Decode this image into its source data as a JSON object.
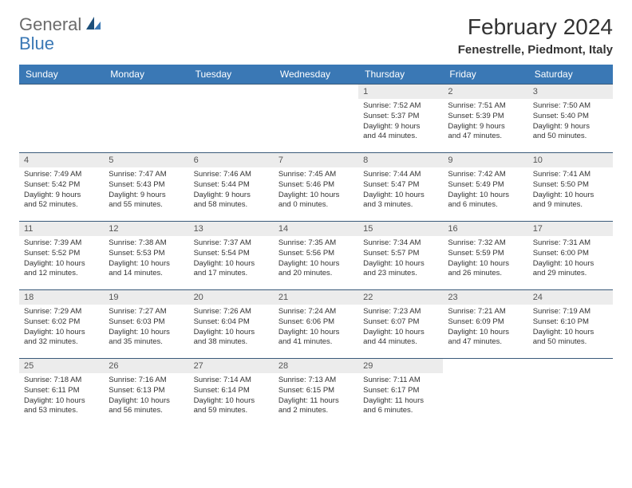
{
  "brand": {
    "first": "General",
    "second": "Blue"
  },
  "title": "February 2024",
  "location": "Fenestrelle, Piedmont, Italy",
  "colors": {
    "header_bg": "#3a78b5",
    "header_text": "#ffffff",
    "daynum_bg": "#ececec",
    "daynum_text": "#555555",
    "body_text": "#333333",
    "row_border": "#3a5a7a",
    "logo_gray": "#6b6b6b",
    "logo_blue": "#3a78b5",
    "page_bg": "#ffffff"
  },
  "typography": {
    "title_size": 28,
    "location_size": 15,
    "header_cell_size": 12,
    "daynum_size": 11,
    "info_size": 9.5
  },
  "columns": [
    "Sunday",
    "Monday",
    "Tuesday",
    "Wednesday",
    "Thursday",
    "Friday",
    "Saturday"
  ],
  "weeks": [
    [
      null,
      null,
      null,
      null,
      {
        "n": "1",
        "sr": "Sunrise: 7:52 AM",
        "ss": "Sunset: 5:37 PM",
        "d1": "Daylight: 9 hours",
        "d2": "and 44 minutes."
      },
      {
        "n": "2",
        "sr": "Sunrise: 7:51 AM",
        "ss": "Sunset: 5:39 PM",
        "d1": "Daylight: 9 hours",
        "d2": "and 47 minutes."
      },
      {
        "n": "3",
        "sr": "Sunrise: 7:50 AM",
        "ss": "Sunset: 5:40 PM",
        "d1": "Daylight: 9 hours",
        "d2": "and 50 minutes."
      }
    ],
    [
      {
        "n": "4",
        "sr": "Sunrise: 7:49 AM",
        "ss": "Sunset: 5:42 PM",
        "d1": "Daylight: 9 hours",
        "d2": "and 52 minutes."
      },
      {
        "n": "5",
        "sr": "Sunrise: 7:47 AM",
        "ss": "Sunset: 5:43 PM",
        "d1": "Daylight: 9 hours",
        "d2": "and 55 minutes."
      },
      {
        "n": "6",
        "sr": "Sunrise: 7:46 AM",
        "ss": "Sunset: 5:44 PM",
        "d1": "Daylight: 9 hours",
        "d2": "and 58 minutes."
      },
      {
        "n": "7",
        "sr": "Sunrise: 7:45 AM",
        "ss": "Sunset: 5:46 PM",
        "d1": "Daylight: 10 hours",
        "d2": "and 0 minutes."
      },
      {
        "n": "8",
        "sr": "Sunrise: 7:44 AM",
        "ss": "Sunset: 5:47 PM",
        "d1": "Daylight: 10 hours",
        "d2": "and 3 minutes."
      },
      {
        "n": "9",
        "sr": "Sunrise: 7:42 AM",
        "ss": "Sunset: 5:49 PM",
        "d1": "Daylight: 10 hours",
        "d2": "and 6 minutes."
      },
      {
        "n": "10",
        "sr": "Sunrise: 7:41 AM",
        "ss": "Sunset: 5:50 PM",
        "d1": "Daylight: 10 hours",
        "d2": "and 9 minutes."
      }
    ],
    [
      {
        "n": "11",
        "sr": "Sunrise: 7:39 AM",
        "ss": "Sunset: 5:52 PM",
        "d1": "Daylight: 10 hours",
        "d2": "and 12 minutes."
      },
      {
        "n": "12",
        "sr": "Sunrise: 7:38 AM",
        "ss": "Sunset: 5:53 PM",
        "d1": "Daylight: 10 hours",
        "d2": "and 14 minutes."
      },
      {
        "n": "13",
        "sr": "Sunrise: 7:37 AM",
        "ss": "Sunset: 5:54 PM",
        "d1": "Daylight: 10 hours",
        "d2": "and 17 minutes."
      },
      {
        "n": "14",
        "sr": "Sunrise: 7:35 AM",
        "ss": "Sunset: 5:56 PM",
        "d1": "Daylight: 10 hours",
        "d2": "and 20 minutes."
      },
      {
        "n": "15",
        "sr": "Sunrise: 7:34 AM",
        "ss": "Sunset: 5:57 PM",
        "d1": "Daylight: 10 hours",
        "d2": "and 23 minutes."
      },
      {
        "n": "16",
        "sr": "Sunrise: 7:32 AM",
        "ss": "Sunset: 5:59 PM",
        "d1": "Daylight: 10 hours",
        "d2": "and 26 minutes."
      },
      {
        "n": "17",
        "sr": "Sunrise: 7:31 AM",
        "ss": "Sunset: 6:00 PM",
        "d1": "Daylight: 10 hours",
        "d2": "and 29 minutes."
      }
    ],
    [
      {
        "n": "18",
        "sr": "Sunrise: 7:29 AM",
        "ss": "Sunset: 6:02 PM",
        "d1": "Daylight: 10 hours",
        "d2": "and 32 minutes."
      },
      {
        "n": "19",
        "sr": "Sunrise: 7:27 AM",
        "ss": "Sunset: 6:03 PM",
        "d1": "Daylight: 10 hours",
        "d2": "and 35 minutes."
      },
      {
        "n": "20",
        "sr": "Sunrise: 7:26 AM",
        "ss": "Sunset: 6:04 PM",
        "d1": "Daylight: 10 hours",
        "d2": "and 38 minutes."
      },
      {
        "n": "21",
        "sr": "Sunrise: 7:24 AM",
        "ss": "Sunset: 6:06 PM",
        "d1": "Daylight: 10 hours",
        "d2": "and 41 minutes."
      },
      {
        "n": "22",
        "sr": "Sunrise: 7:23 AM",
        "ss": "Sunset: 6:07 PM",
        "d1": "Daylight: 10 hours",
        "d2": "and 44 minutes."
      },
      {
        "n": "23",
        "sr": "Sunrise: 7:21 AM",
        "ss": "Sunset: 6:09 PM",
        "d1": "Daylight: 10 hours",
        "d2": "and 47 minutes."
      },
      {
        "n": "24",
        "sr": "Sunrise: 7:19 AM",
        "ss": "Sunset: 6:10 PM",
        "d1": "Daylight: 10 hours",
        "d2": "and 50 minutes."
      }
    ],
    [
      {
        "n": "25",
        "sr": "Sunrise: 7:18 AM",
        "ss": "Sunset: 6:11 PM",
        "d1": "Daylight: 10 hours",
        "d2": "and 53 minutes."
      },
      {
        "n": "26",
        "sr": "Sunrise: 7:16 AM",
        "ss": "Sunset: 6:13 PM",
        "d1": "Daylight: 10 hours",
        "d2": "and 56 minutes."
      },
      {
        "n": "27",
        "sr": "Sunrise: 7:14 AM",
        "ss": "Sunset: 6:14 PM",
        "d1": "Daylight: 10 hours",
        "d2": "and 59 minutes."
      },
      {
        "n": "28",
        "sr": "Sunrise: 7:13 AM",
        "ss": "Sunset: 6:15 PM",
        "d1": "Daylight: 11 hours",
        "d2": "and 2 minutes."
      },
      {
        "n": "29",
        "sr": "Sunrise: 7:11 AM",
        "ss": "Sunset: 6:17 PM",
        "d1": "Daylight: 11 hours",
        "d2": "and 6 minutes."
      },
      null,
      null
    ]
  ]
}
